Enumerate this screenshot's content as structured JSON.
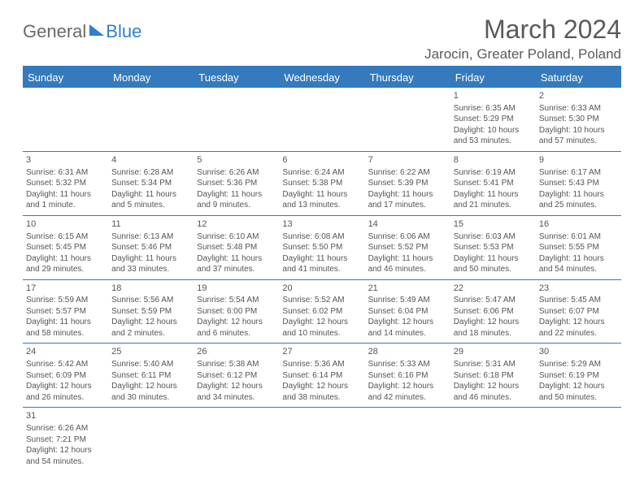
{
  "logo": {
    "part1": "General",
    "part2": "Blue"
  },
  "title": {
    "month": "March 2024",
    "location": "Jarocin, Greater Poland, Poland"
  },
  "headers": [
    "Sunday",
    "Monday",
    "Tuesday",
    "Wednesday",
    "Thursday",
    "Friday",
    "Saturday"
  ],
  "colors": {
    "accent": "#357abd",
    "text": "#555"
  },
  "weeks": [
    [
      null,
      null,
      null,
      null,
      null,
      {
        "n": "1",
        "sr": "Sunrise: 6:35 AM",
        "ss": "Sunset: 5:29 PM",
        "d1": "Daylight: 10 hours",
        "d2": "and 53 minutes."
      },
      {
        "n": "2",
        "sr": "Sunrise: 6:33 AM",
        "ss": "Sunset: 5:30 PM",
        "d1": "Daylight: 10 hours",
        "d2": "and 57 minutes."
      }
    ],
    [
      {
        "n": "3",
        "sr": "Sunrise: 6:31 AM",
        "ss": "Sunset: 5:32 PM",
        "d1": "Daylight: 11 hours",
        "d2": "and 1 minute."
      },
      {
        "n": "4",
        "sr": "Sunrise: 6:28 AM",
        "ss": "Sunset: 5:34 PM",
        "d1": "Daylight: 11 hours",
        "d2": "and 5 minutes."
      },
      {
        "n": "5",
        "sr": "Sunrise: 6:26 AM",
        "ss": "Sunset: 5:36 PM",
        "d1": "Daylight: 11 hours",
        "d2": "and 9 minutes."
      },
      {
        "n": "6",
        "sr": "Sunrise: 6:24 AM",
        "ss": "Sunset: 5:38 PM",
        "d1": "Daylight: 11 hours",
        "d2": "and 13 minutes."
      },
      {
        "n": "7",
        "sr": "Sunrise: 6:22 AM",
        "ss": "Sunset: 5:39 PM",
        "d1": "Daylight: 11 hours",
        "d2": "and 17 minutes."
      },
      {
        "n": "8",
        "sr": "Sunrise: 6:19 AM",
        "ss": "Sunset: 5:41 PM",
        "d1": "Daylight: 11 hours",
        "d2": "and 21 minutes."
      },
      {
        "n": "9",
        "sr": "Sunrise: 6:17 AM",
        "ss": "Sunset: 5:43 PM",
        "d1": "Daylight: 11 hours",
        "d2": "and 25 minutes."
      }
    ],
    [
      {
        "n": "10",
        "sr": "Sunrise: 6:15 AM",
        "ss": "Sunset: 5:45 PM",
        "d1": "Daylight: 11 hours",
        "d2": "and 29 minutes."
      },
      {
        "n": "11",
        "sr": "Sunrise: 6:13 AM",
        "ss": "Sunset: 5:46 PM",
        "d1": "Daylight: 11 hours",
        "d2": "and 33 minutes."
      },
      {
        "n": "12",
        "sr": "Sunrise: 6:10 AM",
        "ss": "Sunset: 5:48 PM",
        "d1": "Daylight: 11 hours",
        "d2": "and 37 minutes."
      },
      {
        "n": "13",
        "sr": "Sunrise: 6:08 AM",
        "ss": "Sunset: 5:50 PM",
        "d1": "Daylight: 11 hours",
        "d2": "and 41 minutes."
      },
      {
        "n": "14",
        "sr": "Sunrise: 6:06 AM",
        "ss": "Sunset: 5:52 PM",
        "d1": "Daylight: 11 hours",
        "d2": "and 46 minutes."
      },
      {
        "n": "15",
        "sr": "Sunrise: 6:03 AM",
        "ss": "Sunset: 5:53 PM",
        "d1": "Daylight: 11 hours",
        "d2": "and 50 minutes."
      },
      {
        "n": "16",
        "sr": "Sunrise: 6:01 AM",
        "ss": "Sunset: 5:55 PM",
        "d1": "Daylight: 11 hours",
        "d2": "and 54 minutes."
      }
    ],
    [
      {
        "n": "17",
        "sr": "Sunrise: 5:59 AM",
        "ss": "Sunset: 5:57 PM",
        "d1": "Daylight: 11 hours",
        "d2": "and 58 minutes."
      },
      {
        "n": "18",
        "sr": "Sunrise: 5:56 AM",
        "ss": "Sunset: 5:59 PM",
        "d1": "Daylight: 12 hours",
        "d2": "and 2 minutes."
      },
      {
        "n": "19",
        "sr": "Sunrise: 5:54 AM",
        "ss": "Sunset: 6:00 PM",
        "d1": "Daylight: 12 hours",
        "d2": "and 6 minutes."
      },
      {
        "n": "20",
        "sr": "Sunrise: 5:52 AM",
        "ss": "Sunset: 6:02 PM",
        "d1": "Daylight: 12 hours",
        "d2": "and 10 minutes."
      },
      {
        "n": "21",
        "sr": "Sunrise: 5:49 AM",
        "ss": "Sunset: 6:04 PM",
        "d1": "Daylight: 12 hours",
        "d2": "and 14 minutes."
      },
      {
        "n": "22",
        "sr": "Sunrise: 5:47 AM",
        "ss": "Sunset: 6:06 PM",
        "d1": "Daylight: 12 hours",
        "d2": "and 18 minutes."
      },
      {
        "n": "23",
        "sr": "Sunrise: 5:45 AM",
        "ss": "Sunset: 6:07 PM",
        "d1": "Daylight: 12 hours",
        "d2": "and 22 minutes."
      }
    ],
    [
      {
        "n": "24",
        "sr": "Sunrise: 5:42 AM",
        "ss": "Sunset: 6:09 PM",
        "d1": "Daylight: 12 hours",
        "d2": "and 26 minutes."
      },
      {
        "n": "25",
        "sr": "Sunrise: 5:40 AM",
        "ss": "Sunset: 6:11 PM",
        "d1": "Daylight: 12 hours",
        "d2": "and 30 minutes."
      },
      {
        "n": "26",
        "sr": "Sunrise: 5:38 AM",
        "ss": "Sunset: 6:12 PM",
        "d1": "Daylight: 12 hours",
        "d2": "and 34 minutes."
      },
      {
        "n": "27",
        "sr": "Sunrise: 5:36 AM",
        "ss": "Sunset: 6:14 PM",
        "d1": "Daylight: 12 hours",
        "d2": "and 38 minutes."
      },
      {
        "n": "28",
        "sr": "Sunrise: 5:33 AM",
        "ss": "Sunset: 6:16 PM",
        "d1": "Daylight: 12 hours",
        "d2": "and 42 minutes."
      },
      {
        "n": "29",
        "sr": "Sunrise: 5:31 AM",
        "ss": "Sunset: 6:18 PM",
        "d1": "Daylight: 12 hours",
        "d2": "and 46 minutes."
      },
      {
        "n": "30",
        "sr": "Sunrise: 5:29 AM",
        "ss": "Sunset: 6:19 PM",
        "d1": "Daylight: 12 hours",
        "d2": "and 50 minutes."
      }
    ],
    [
      {
        "n": "31",
        "sr": "Sunrise: 6:26 AM",
        "ss": "Sunset: 7:21 PM",
        "d1": "Daylight: 12 hours",
        "d2": "and 54 minutes."
      },
      null,
      null,
      null,
      null,
      null,
      null
    ]
  ]
}
